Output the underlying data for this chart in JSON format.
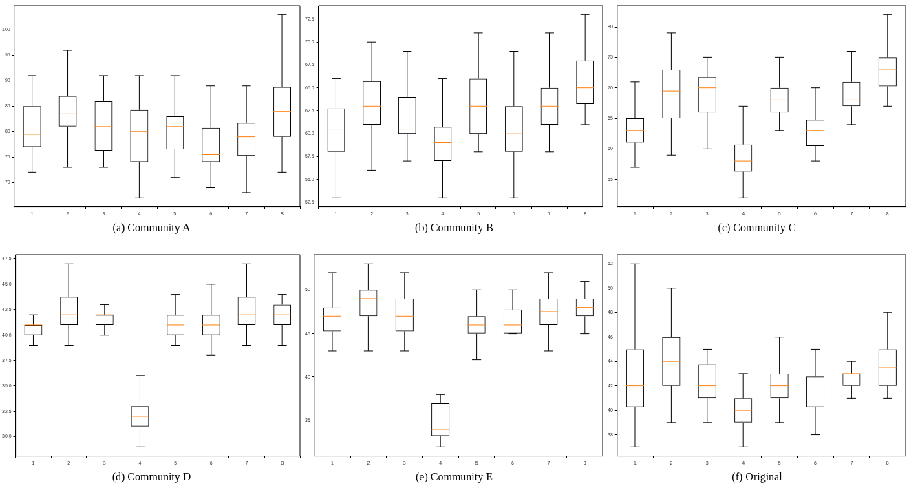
{
  "chart_data": [
    {
      "type": "box",
      "title": "(a) Community A",
      "categories": [
        "1",
        "2",
        "3",
        "4",
        "5",
        "6",
        "7",
        "8"
      ],
      "ylim": [
        65.2,
        104.8
      ],
      "yticks": [
        70,
        75,
        80,
        85,
        90,
        95,
        100
      ],
      "grid": false,
      "legend": false,
      "boxes": [
        {
          "low": 72,
          "q1": 77,
          "median": 79.5,
          "q3": 85,
          "high": 91
        },
        {
          "low": 73,
          "q1": 81,
          "median": 83.5,
          "q3": 87,
          "high": 96
        },
        {
          "low": 73,
          "q1": 76.25,
          "median": 81,
          "q3": 86,
          "high": 91
        },
        {
          "low": 67,
          "q1": 74,
          "median": 80,
          "q3": 84.25,
          "high": 91
        },
        {
          "low": 71,
          "q1": 76.5,
          "median": 81,
          "q3": 83,
          "high": 91
        },
        {
          "low": 69,
          "q1": 74,
          "median": 75.5,
          "q3": 80.75,
          "high": 89
        },
        {
          "low": 68,
          "q1": 75.25,
          "median": 79,
          "q3": 81.75,
          "high": 89
        },
        {
          "low": 72,
          "q1": 79,
          "median": 84,
          "q3": 88.75,
          "high": 103
        }
      ]
    },
    {
      "type": "box",
      "title": "(b) Community B",
      "categories": [
        "1",
        "2",
        "3",
        "4",
        "5",
        "6",
        "7",
        "8"
      ],
      "ylim": [
        52,
        74
      ],
      "yticks": [
        52.5,
        {
          "value": 55,
          "label": "55.0"
        },
        57.5,
        {
          "value": 60,
          "label": "60.0"
        },
        62.5,
        {
          "value": 65,
          "label": "65.0"
        },
        67.5,
        {
          "value": 70,
          "label": "70.0"
        },
        72.5
      ],
      "grid": false,
      "legend": false,
      "boxes": [
        {
          "low": 53,
          "q1": 58,
          "median": 60.5,
          "q3": 62.75,
          "high": 66
        },
        {
          "low": 56,
          "q1": 61,
          "median": 63,
          "q3": 65.75,
          "high": 70
        },
        {
          "low": 57,
          "q1": 60,
          "median": 60.5,
          "q3": 64,
          "high": 69
        },
        {
          "low": 53,
          "q1": 57,
          "median": 59,
          "q3": 60.75,
          "high": 66
        },
        {
          "low": 58,
          "q1": 60,
          "median": 63,
          "q3": 66,
          "high": 71
        },
        {
          "low": 53,
          "q1": 58,
          "median": 60,
          "q3": 63,
          "high": 69
        },
        {
          "low": 58,
          "q1": 61,
          "median": 63,
          "q3": 65,
          "high": 71
        },
        {
          "low": 61,
          "q1": 63.25,
          "median": 65,
          "q3": 68,
          "high": 73
        }
      ]
    },
    {
      "type": "box",
      "title": "(c) Community C",
      "categories": [
        "1",
        "2",
        "3",
        "4",
        "5",
        "6",
        "7",
        "8"
      ],
      "ylim": [
        50.5,
        83.5
      ],
      "yticks": [
        55,
        60,
        65,
        70,
        75,
        80
      ],
      "grid": false,
      "legend": false,
      "boxes": [
        {
          "low": 57,
          "q1": 61,
          "median": 63,
          "q3": 65,
          "high": 71
        },
        {
          "low": 59,
          "q1": 65,
          "median": 69.5,
          "q3": 73,
          "high": 79
        },
        {
          "low": 60,
          "q1": 66,
          "median": 70,
          "q3": 71.75,
          "high": 75
        },
        {
          "low": 52,
          "q1": 56.25,
          "median": 58,
          "q3": 60.75,
          "high": 67
        },
        {
          "low": 63,
          "q1": 66,
          "median": 68,
          "q3": 70,
          "high": 75
        },
        {
          "low": 58,
          "q1": 60.5,
          "median": 63,
          "q3": 64.75,
          "high": 70
        },
        {
          "low": 64,
          "q1": 67,
          "median": 68,
          "q3": 71,
          "high": 76
        },
        {
          "low": 67,
          "q1": 70.25,
          "median": 73,
          "q3": 75,
          "high": 82
        }
      ]
    },
    {
      "type": "box",
      "title": "(d) Community D",
      "categories": [
        "1",
        "2",
        "3",
        "4",
        "5",
        "6",
        "7",
        "8"
      ],
      "ylim": [
        28.1,
        47.9
      ],
      "yticks": [
        {
          "value": 30,
          "label": "30.0"
        },
        32.5,
        {
          "value": 35,
          "label": "35.0"
        },
        37.5,
        {
          "value": 40,
          "label": "40.0"
        },
        42.5,
        {
          "value": 45,
          "label": "45.0"
        },
        47.5
      ],
      "grid": false,
      "legend": false,
      "boxes": [
        {
          "low": 39,
          "q1": 40,
          "median": 41,
          "q3": 41,
          "high": 42
        },
        {
          "low": 39,
          "q1": 41,
          "median": 42,
          "q3": 43.75,
          "high": 47
        },
        {
          "low": 40,
          "q1": 41,
          "median": 42,
          "q3": 42,
          "high": 43
        },
        {
          "low": 29,
          "q1": 31,
          "median": 32,
          "q3": 33,
          "high": 36
        },
        {
          "low": 39,
          "q1": 40,
          "median": 41,
          "q3": 42,
          "high": 44
        },
        {
          "low": 38,
          "q1": 40,
          "median": 41,
          "q3": 42,
          "high": 45
        },
        {
          "low": 39,
          "q1": 41,
          "median": 42,
          "q3": 43.75,
          "high": 47
        },
        {
          "low": 39,
          "q1": 41,
          "median": 42,
          "q3": 43,
          "high": 44
        }
      ]
    },
    {
      "type": "box",
      "title": "(e) Community E",
      "categories": [
        "1",
        "2",
        "3",
        "4",
        "5",
        "6",
        "7",
        "8"
      ],
      "ylim": [
        30.95,
        54.05
      ],
      "yticks": [
        35,
        40,
        45,
        50
      ],
      "grid": false,
      "legend": false,
      "boxes": [
        {
          "low": 43,
          "q1": 45.25,
          "median": 47,
          "q3": 48,
          "high": 52
        },
        {
          "low": 43,
          "q1": 47,
          "median": 49,
          "q3": 50,
          "high": 53
        },
        {
          "low": 43,
          "q1": 45.25,
          "median": 47,
          "q3": 49,
          "high": 52
        },
        {
          "low": 32,
          "q1": 33.25,
          "median": 34,
          "q3": 37,
          "high": 38
        },
        {
          "low": 42,
          "q1": 45,
          "median": 46,
          "q3": 47,
          "high": 50
        },
        {
          "low": 45,
          "q1": 45,
          "median": 46,
          "q3": 47.75,
          "high": 50
        },
        {
          "low": 43,
          "q1": 46,
          "median": 47.5,
          "q3": 49,
          "high": 52
        },
        {
          "low": 45,
          "q1": 47,
          "median": 48,
          "q3": 49,
          "high": 51
        }
      ]
    },
    {
      "type": "box",
      "title": "(f) Original",
      "categories": [
        "1",
        "2",
        "3",
        "4",
        "5",
        "6",
        "7",
        "8"
      ],
      "ylim": [
        36.25,
        52.75
      ],
      "yticks": [
        38,
        40,
        42,
        44,
        46,
        48,
        50,
        52
      ],
      "grid": false,
      "legend": false,
      "boxes": [
        {
          "low": 37,
          "q1": 40.25,
          "median": 42,
          "q3": 45,
          "high": 52
        },
        {
          "low": 39,
          "q1": 42,
          "median": 44,
          "q3": 46,
          "high": 50
        },
        {
          "low": 39,
          "q1": 41,
          "median": 42,
          "q3": 43.75,
          "high": 45
        },
        {
          "low": 37,
          "q1": 39,
          "median": 40,
          "q3": 41,
          "high": 43
        },
        {
          "low": 39,
          "q1": 41,
          "median": 42,
          "q3": 43,
          "high": 46
        },
        {
          "low": 38,
          "q1": 40.25,
          "median": 41.5,
          "q3": 42.75,
          "high": 45
        },
        {
          "low": 41,
          "q1": 42,
          "median": 43,
          "q3": 43,
          "high": 44
        },
        {
          "low": 41,
          "q1": 42,
          "median": 43.5,
          "q3": 45,
          "high": 48
        }
      ]
    }
  ]
}
